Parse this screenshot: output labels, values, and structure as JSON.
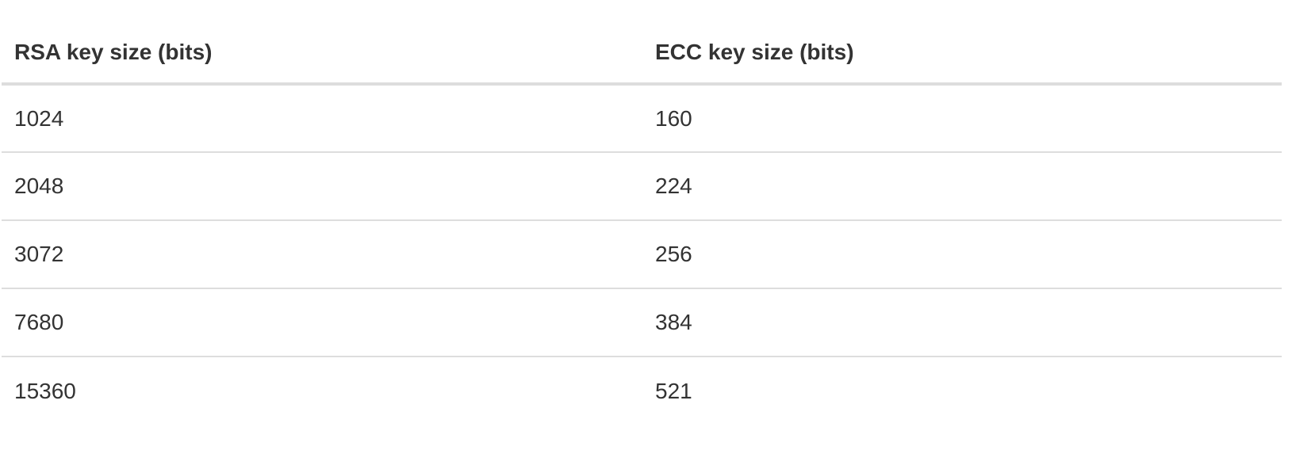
{
  "table": {
    "headers": [
      "RSA key size (bits)",
      "ECC key size (bits)"
    ],
    "rows": [
      [
        "1024",
        "160"
      ],
      [
        "2048",
        "224"
      ],
      [
        "3072",
        "256"
      ],
      [
        "7680",
        "384"
      ],
      [
        "15360",
        "521"
      ]
    ]
  }
}
